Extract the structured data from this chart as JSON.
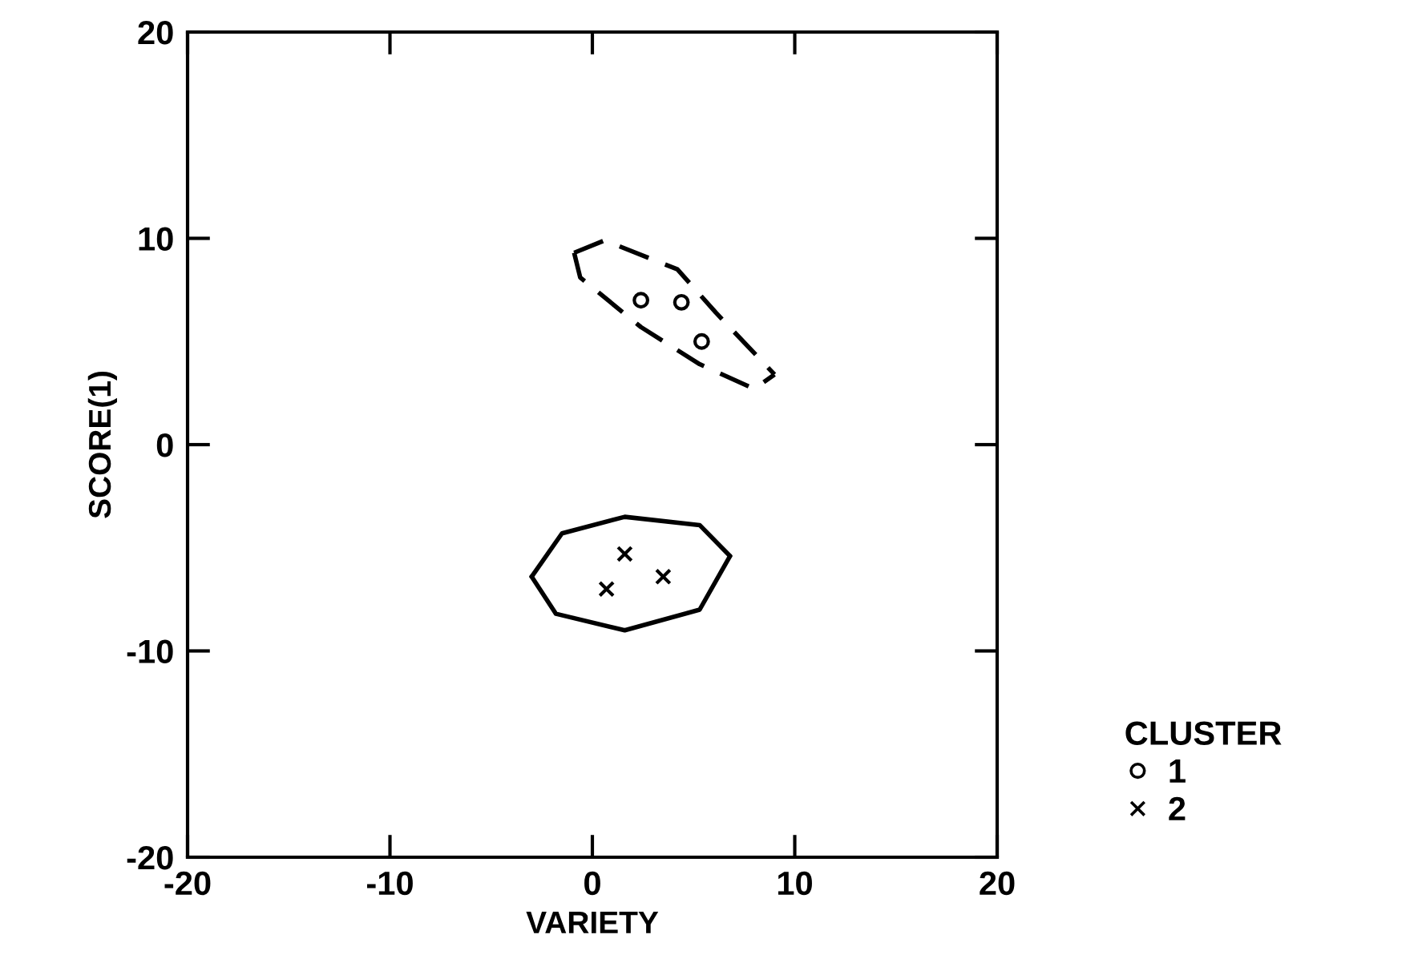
{
  "chart_data": {
    "type": "scatter",
    "xlabel": "VARIETY",
    "ylabel": "SCORE(1)",
    "legend_title": "CLUSTER",
    "legend": "bottom right",
    "grid": false,
    "xlim": [
      -20,
      20
    ],
    "ylim": [
      -20,
      20
    ],
    "xticks": [
      -20,
      -10,
      0,
      10,
      20
    ],
    "yticks": [
      -20,
      -10,
      0,
      10,
      20
    ],
    "series": [
      {
        "name": "1",
        "marker": "circle",
        "color": "#000000",
        "x": [
          2.4,
          4.4,
          5.4
        ],
        "values": [
          7.0,
          6.9,
          5.0
        ]
      },
      {
        "name": "2",
        "marker": "cross",
        "color": "#000000",
        "x": [
          1.6,
          3.5,
          0.7
        ],
        "values": [
          -5.3,
          -6.4,
          -7.0
        ]
      },
      {
        "type": "line",
        "line_style": "dashed",
        "color": "#000000",
        "x": [
          -0.9,
          0.6,
          4.2,
          6.1,
          9.0
        ],
        "values": [
          9.3,
          9.9,
          8.5,
          6.4,
          3.4
        ]
      },
      {
        "type": "line",
        "line_style": "dashed",
        "color": "#000000",
        "x": [
          -0.9,
          -0.6,
          2.4,
          5.3,
          8.0,
          9.0
        ],
        "values": [
          9.3,
          8.1,
          5.7,
          3.9,
          2.7,
          3.4
        ]
      },
      {
        "type": "line",
        "line_style": "solid",
        "color": "#000000",
        "x": [
          -3.0,
          -1.5,
          1.6,
          5.3,
          6.8
        ],
        "values": [
          -6.4,
          -4.3,
          -3.5,
          -3.9,
          -5.4
        ]
      },
      {
        "type": "line",
        "line_style": "solid",
        "color": "#000000",
        "x": [
          -3.0,
          -1.8,
          1.6,
          5.3,
          6.8
        ],
        "values": [
          -6.4,
          -8.2,
          -9.0,
          -8.0,
          -5.4
        ]
      }
    ]
  }
}
